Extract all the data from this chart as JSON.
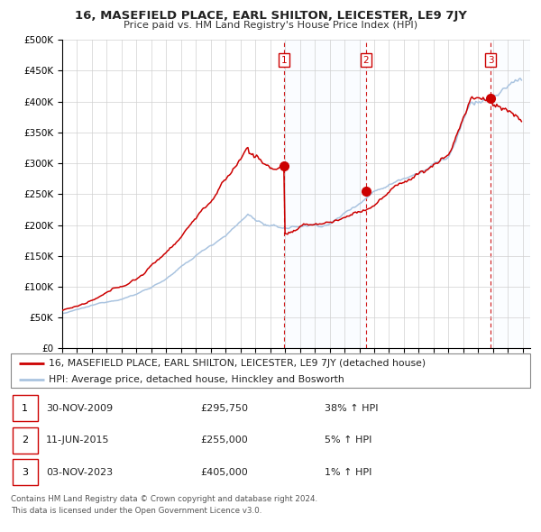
{
  "title": "16, MASEFIELD PLACE, EARL SHILTON, LEICESTER, LE9 7JY",
  "subtitle": "Price paid vs. HM Land Registry's House Price Index (HPI)",
  "ylabel_ticks": [
    "£0",
    "£50K",
    "£100K",
    "£150K",
    "£200K",
    "£250K",
    "£300K",
    "£350K",
    "£400K",
    "£450K",
    "£500K"
  ],
  "ytick_values": [
    0,
    50000,
    100000,
    150000,
    200000,
    250000,
    300000,
    350000,
    400000,
    450000,
    500000
  ],
  "ylim": [
    0,
    500000
  ],
  "xlim_start": 1995.0,
  "xlim_end": 2026.5,
  "hpi_color": "#aac4e0",
  "property_color": "#cc0000",
  "vline_color": "#cc0000",
  "sale1_x": 2009.92,
  "sale1_y": 295750,
  "sale2_x": 2015.44,
  "sale2_y": 255000,
  "sale3_x": 2023.84,
  "sale3_y": 405000,
  "legend_property": "16, MASEFIELD PLACE, EARL SHILTON, LEICESTER, LE9 7JY (detached house)",
  "legend_hpi": "HPI: Average price, detached house, Hinckley and Bosworth",
  "table_rows": [
    [
      "1",
      "30-NOV-2009",
      "£295,750",
      "38% ↑ HPI"
    ],
    [
      "2",
      "11-JUN-2015",
      "£255,000",
      "5% ↑ HPI"
    ],
    [
      "3",
      "03-NOV-2023",
      "£405,000",
      "1% ↑ HPI"
    ]
  ],
  "footnote1": "Contains HM Land Registry data © Crown copyright and database right 2024.",
  "footnote2": "This data is licensed under the Open Government Licence v3.0.",
  "background_color": "#ffffff",
  "plot_bg_color": "#ffffff",
  "grid_color": "#d0d0d0",
  "shade_color": "#ddeeff"
}
